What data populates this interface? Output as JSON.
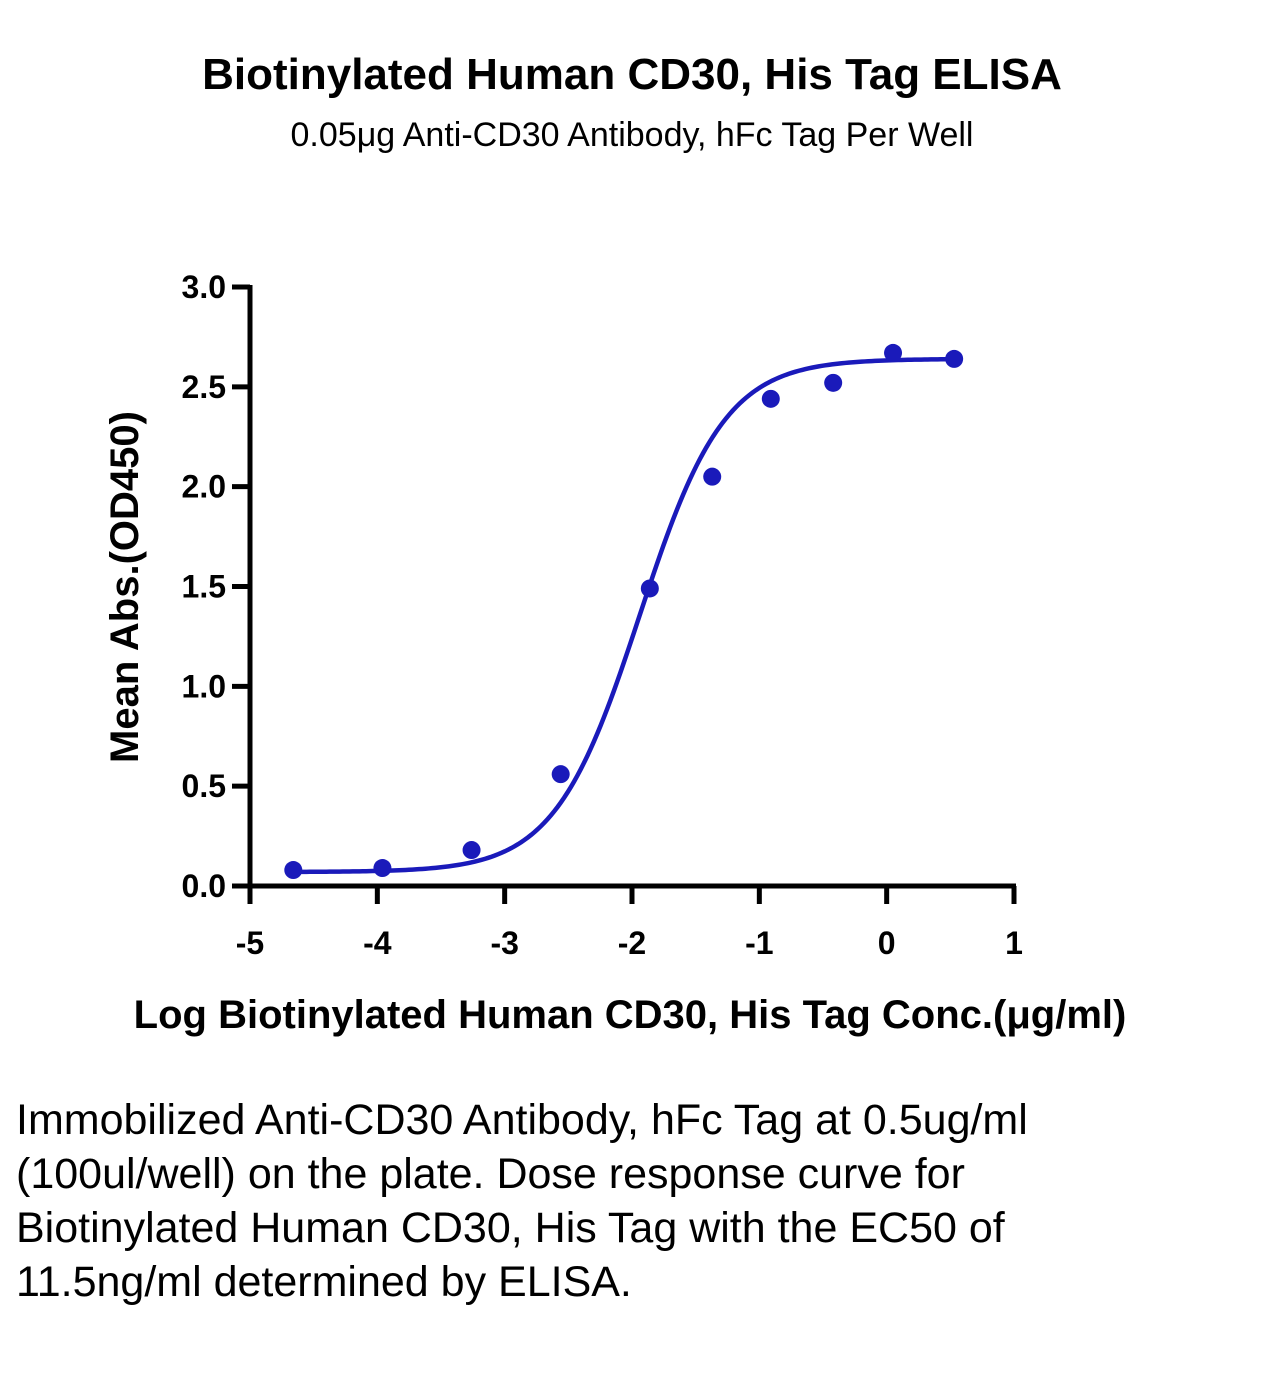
{
  "chart_data": {
    "type": "scatter",
    "title": "Biotinylated Human CD30, His Tag ELISA",
    "subtitle": "0.05μg Anti-CD30 Antibody, hFc Tag Per Well",
    "xlabel": "Log Biotinylated Human CD30, His Tag Conc.(μg/ml)",
    "ylabel": "Mean Abs.(OD450)",
    "xlim": [
      -5,
      1
    ],
    "ylim": [
      0,
      3
    ],
    "x_ticks": [
      -5,
      -4,
      -3,
      -2,
      -1,
      0,
      1
    ],
    "x_tick_labels": [
      "-5",
      "-4",
      "-3",
      "-2",
      "-1",
      "0",
      "1"
    ],
    "y_ticks": [
      0,
      0.5,
      1,
      1.5,
      2,
      2.5,
      3
    ],
    "y_tick_labels": [
      "0.0",
      "0.5",
      "1.0",
      "1.5",
      "2.0",
      "2.5",
      "3.0"
    ],
    "grid": false,
    "series": [
      {
        "color": "#1a1aba",
        "x": [
          -4.66,
          -3.96,
          -3.26,
          -2.56,
          -1.86,
          -1.37,
          -0.91,
          -0.42,
          0.05,
          0.53
        ],
        "y": [
          0.08,
          0.09,
          0.18,
          0.56,
          1.49,
          2.05,
          2.44,
          2.52,
          2.67,
          2.64
        ],
        "fit": {
          "model": "4PL",
          "bottom": 0.07,
          "top": 2.64,
          "logEC50": -1.94,
          "hill": 1.3,
          "x_range": [
            -4.66,
            0.53
          ]
        }
      }
    ]
  },
  "caption": "Immobilized Anti-CD30 Antibody, hFc Tag at 0.5ug/ml (100ul/well) on the plate. Dose response curve for Biotinylated Human CD30, His Tag with the EC50 of 11.5ng/ml determined by ELISA."
}
